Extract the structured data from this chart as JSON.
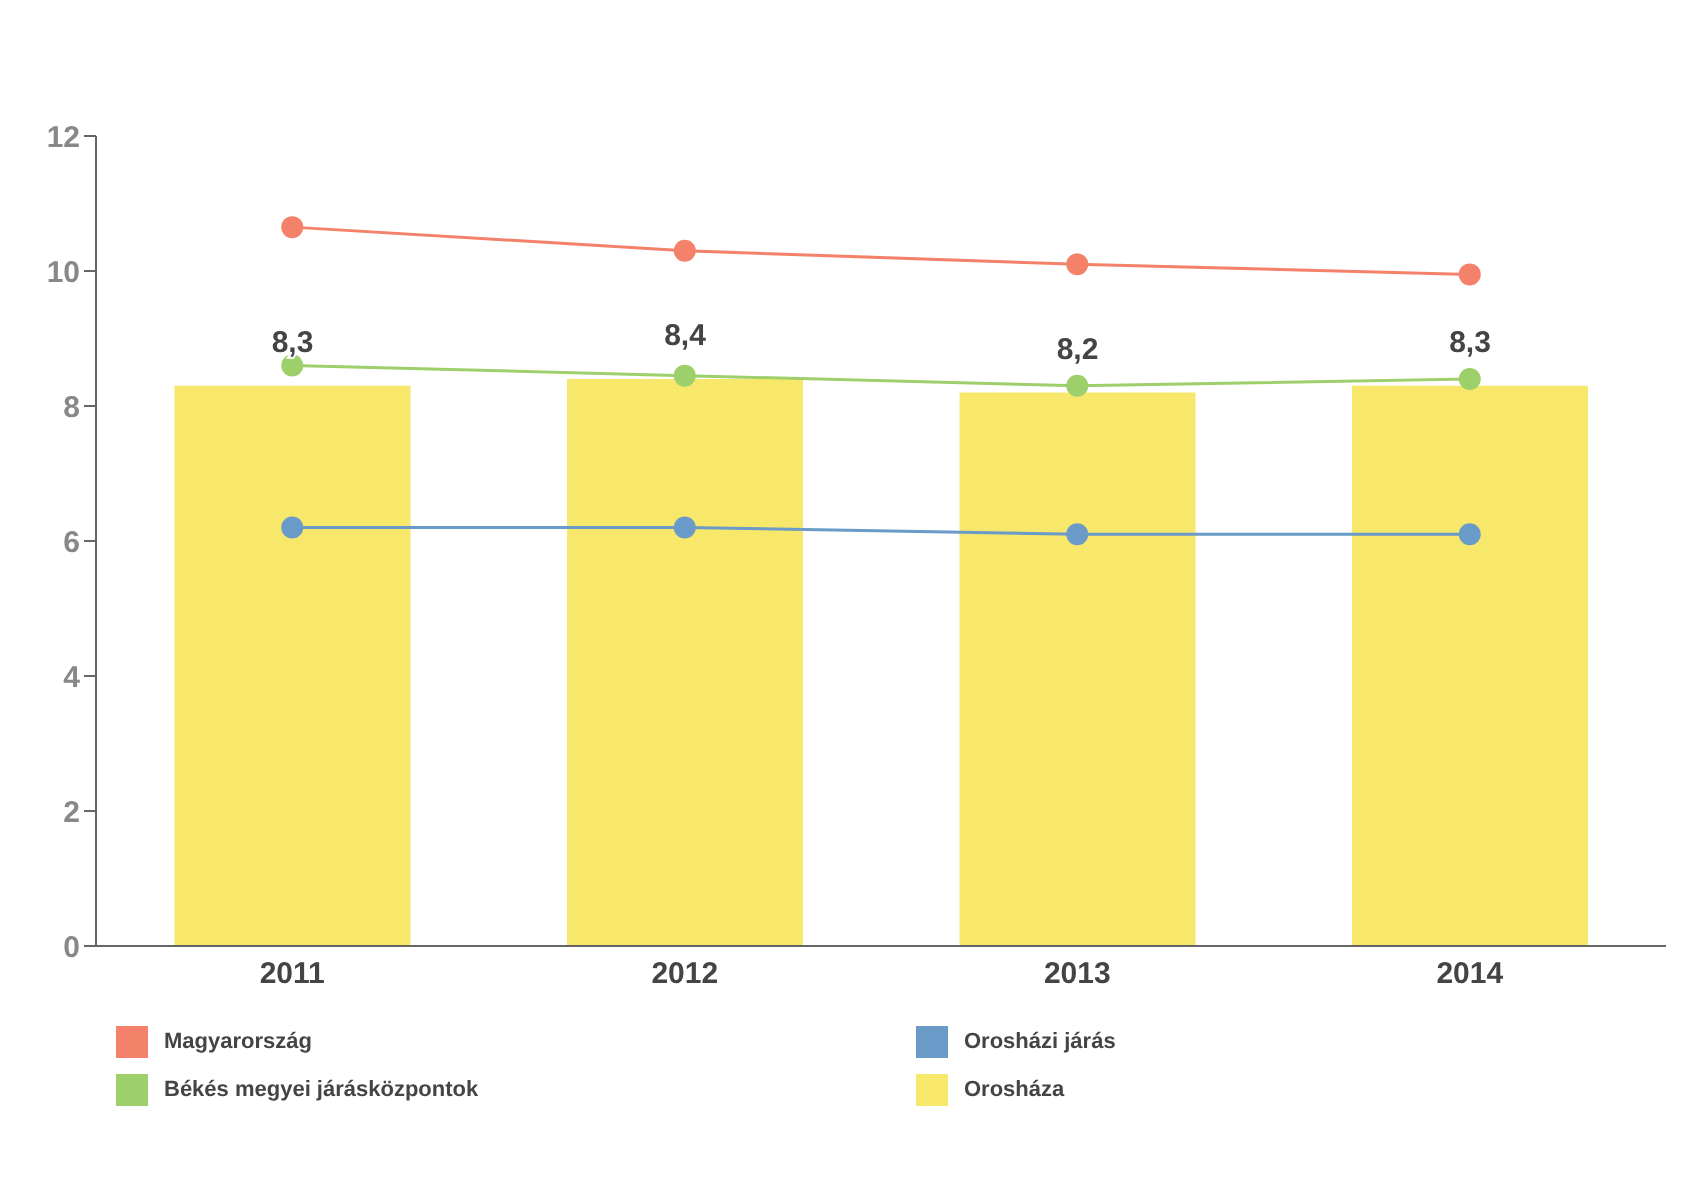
{
  "chart_data": {
    "type": "line",
    "categories": [
      "2011",
      "2012",
      "2013",
      "2014"
    ],
    "series": [
      {
        "name": "Magyarország",
        "color": "#f4826a",
        "values": [
          10.65,
          10.3,
          10.1,
          9.95
        ]
      },
      {
        "name": "Orosházi járás",
        "color": "#6a9bc8",
        "values": [
          6.2,
          6.2,
          6.1,
          6.1
        ]
      },
      {
        "name": "Békés megyei járásközpontok",
        "color": "#9dcf6a",
        "values": [
          8.6,
          8.45,
          8.3,
          8.4
        ]
      },
      {
        "name": "Orosháza",
        "type": "bar",
        "color": "#f7e76a",
        "values": [
          8.3,
          8.4,
          8.2,
          8.3
        ],
        "value_labels": [
          "8,3",
          "8,4",
          "8,2",
          "8,3"
        ]
      }
    ],
    "ylim": [
      0,
      12
    ],
    "yticks": [
      0,
      2,
      4,
      6,
      8,
      10,
      12
    ],
    "legend": "bottom",
    "marker": "circle"
  }
}
